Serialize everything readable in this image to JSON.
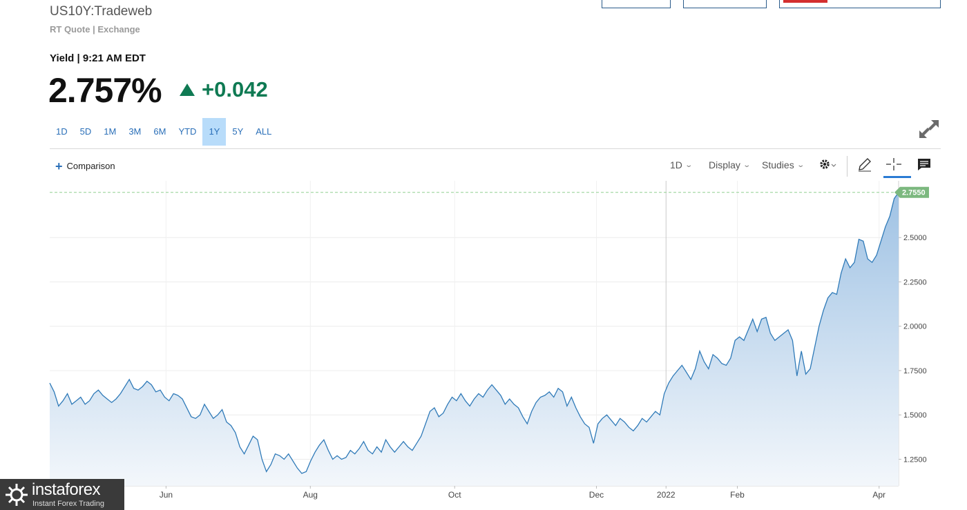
{
  "header": {
    "symbol": "US10Y:Tradeweb",
    "subtitle": "RT Quote | Exchange",
    "yield_label": "Yield | 9:21 AM EDT",
    "price": "2.757%",
    "change": "+0.042"
  },
  "ranges": [
    "1D",
    "5D",
    "1M",
    "3M",
    "6M",
    "YTD",
    "1Y",
    "5Y",
    "ALL"
  ],
  "active_range": "1Y",
  "toolbar": {
    "comparison": "Comparison",
    "interval": "1D",
    "display": "Display",
    "studies": "Studies"
  },
  "icons": [
    "expand-icon",
    "gear-icon",
    "pencil-icon",
    "crosshair-icon",
    "notes-icon",
    "chevron-down-icon",
    "triangle-up-icon"
  ],
  "colors": {
    "accent": "#2a6fb8",
    "up": "#0f7a53",
    "line": "#2f7ab8",
    "last_label_bg": "#7cb87f"
  },
  "watermark": {
    "brand": "instaforex",
    "tagline": "Instant Forex Trading"
  },
  "chart_data": {
    "type": "area",
    "x_tick_labels": [
      "Jun",
      "Aug",
      "Oct",
      "Dec",
      "2022",
      "Feb",
      "Apr"
    ],
    "y_tick_labels": [
      "1.2500",
      "1.5000",
      "1.7500",
      "2.0000",
      "2.2500",
      "2.5000"
    ],
    "ylim": [
      1.1,
      2.82
    ],
    "last_value_label": "2.7550",
    "grid": true,
    "series": [
      {
        "values": [
          1.68,
          1.63,
          1.55,
          1.58,
          1.62,
          1.56,
          1.58,
          1.6,
          1.56,
          1.58,
          1.62,
          1.64,
          1.61,
          1.59,
          1.57,
          1.59,
          1.62,
          1.66,
          1.7,
          1.65,
          1.64,
          1.66,
          1.69,
          1.67,
          1.63,
          1.64,
          1.6,
          1.58,
          1.62,
          1.61,
          1.59,
          1.54,
          1.49,
          1.48,
          1.5,
          1.56,
          1.52,
          1.48,
          1.5,
          1.53,
          1.46,
          1.44,
          1.4,
          1.32,
          1.28,
          1.33,
          1.38,
          1.36,
          1.25,
          1.18,
          1.22,
          1.28,
          1.27,
          1.25,
          1.28,
          1.24,
          1.2,
          1.17,
          1.18,
          1.24,
          1.29,
          1.33,
          1.36,
          1.3,
          1.25,
          1.27,
          1.25,
          1.26,
          1.3,
          1.28,
          1.31,
          1.35,
          1.3,
          1.28,
          1.32,
          1.29,
          1.36,
          1.32,
          1.29,
          1.32,
          1.35,
          1.32,
          1.3,
          1.34,
          1.38,
          1.45,
          1.52,
          1.54,
          1.49,
          1.51,
          1.56,
          1.6,
          1.58,
          1.62,
          1.58,
          1.55,
          1.59,
          1.62,
          1.6,
          1.64,
          1.67,
          1.64,
          1.61,
          1.56,
          1.59,
          1.56,
          1.54,
          1.49,
          1.45,
          1.52,
          1.57,
          1.6,
          1.61,
          1.63,
          1.6,
          1.65,
          1.63,
          1.55,
          1.6,
          1.54,
          1.49,
          1.45,
          1.43,
          1.34,
          1.45,
          1.48,
          1.5,
          1.47,
          1.44,
          1.48,
          1.46,
          1.43,
          1.41,
          1.44,
          1.48,
          1.46,
          1.49,
          1.52,
          1.5,
          1.62,
          1.68,
          1.72,
          1.75,
          1.78,
          1.74,
          1.7,
          1.76,
          1.86,
          1.8,
          1.76,
          1.84,
          1.82,
          1.79,
          1.78,
          1.82,
          1.92,
          1.94,
          1.92,
          1.98,
          2.04,
          1.97,
          2.04,
          2.05,
          1.96,
          1.92,
          1.94,
          1.96,
          1.98,
          1.92,
          1.72,
          1.86,
          1.73,
          1.76,
          1.88,
          2.0,
          2.09,
          2.16,
          2.19,
          2.18,
          2.3,
          2.38,
          2.33,
          2.36,
          2.49,
          2.48,
          2.38,
          2.36,
          2.4,
          2.48,
          2.56,
          2.62,
          2.72,
          2.755
        ]
      }
    ]
  }
}
